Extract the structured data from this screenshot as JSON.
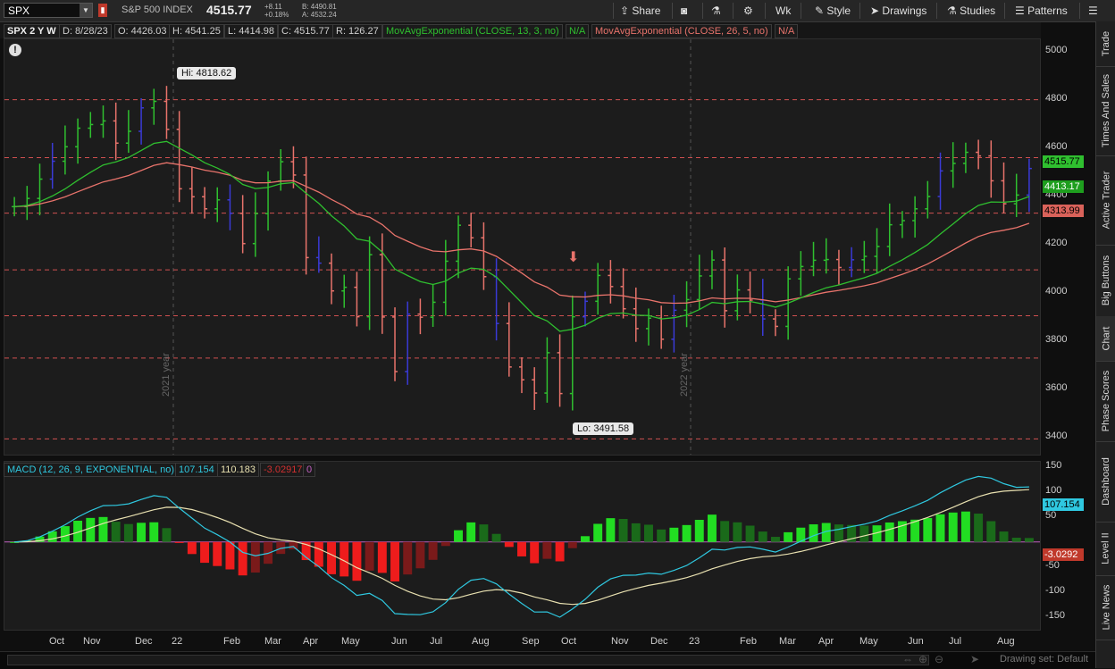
{
  "toolbar": {
    "symbol": "SPX",
    "index_name": "S&P 500 INDEX",
    "last": "4515.77",
    "change": "+8.11",
    "change_pct": "+0.18%",
    "bid": "B: 4490.81",
    "ask": "A: 4532.24",
    "share": "Share",
    "timeframe": "Wk",
    "style": "Style",
    "drawings": "Drawings",
    "studies": "Studies",
    "patterns": "Patterns"
  },
  "study_strip": {
    "aggregation": "SPX 2 Y W",
    "date": "D: 8/28/23",
    "open": "O: 4426.03",
    "high": "H: 4541.25",
    "low": "L: 4414.98",
    "close": "C: 4515.77",
    "range": "R: 126.27",
    "ema1": "MovAvgExponential (CLOSE, 13, 3, no)",
    "ema1_val": "N/A",
    "ema2": "MovAvgExponential (CLOSE, 26, 5, no)",
    "ema2_val": "N/A"
  },
  "macd_strip": {
    "name": "MACD (12, 26, 9, EXPONENTIAL, no)",
    "value": "107.154",
    "avg": "110.183",
    "diff": "-3.02917",
    "zero": "0"
  },
  "annotations": {
    "high_label": "Hi: 4818.62",
    "low_label": "Lo: 3491.58",
    "year_2021": "2021 year",
    "year_2022": "2022 year"
  },
  "price_axis": [
    "5000",
    "4800",
    "4600",
    "4400",
    "4200",
    "4000",
    "3800",
    "3600",
    "3400"
  ],
  "price_tags": {
    "last": "4515.77",
    "ema1": "4413.17",
    "ema2": "4313.99"
  },
  "macd_axis": [
    "150",
    "100",
    "50",
    "-50",
    "-100",
    "-150"
  ],
  "macd_tags": {
    "value": "107.154",
    "diff": "-3.0292"
  },
  "x_axis": [
    "Oct",
    "Nov",
    "Dec",
    "22",
    "Feb",
    "Mar",
    "Apr",
    "May",
    "Jun",
    "Jul",
    "Aug",
    "Sep",
    "Oct",
    "Nov",
    "Dec",
    "23",
    "Feb",
    "Mar",
    "Apr",
    "May",
    "Jun",
    "Jul",
    "Aug"
  ],
  "side_tabs": [
    "Trade",
    "Times And Sales",
    "Active Trader",
    "Big Buttons",
    "Chart",
    "Phase Scores",
    "Dashboard",
    "Level II",
    "Live News"
  ],
  "status": {
    "drawing_set": "Drawing set: Default"
  },
  "colors": {
    "up": "#2fbf2f",
    "down": "#e8736b",
    "neutral": "#3a3ad6",
    "ema_fast": "#2fbf2f",
    "ema_slow": "#e8736b",
    "macd_line": "#2fc8e0",
    "macd_avg": "#e8e0b0"
  },
  "chart_data": {
    "type": "candlestick",
    "symbol": "SPX",
    "period": "weekly",
    "ylim": [
      3330,
      5050
    ],
    "hlines": [
      4800,
      4560,
      4330,
      4095,
      3905,
      3730,
      3395
    ],
    "price_weekly_close": [
      4357,
      4391,
      4471,
      4545,
      4605,
      4682,
      4697,
      4712,
      4620,
      4669,
      4766,
      4793,
      4677,
      4431,
      4398,
      4348,
      4385,
      4329,
      4204,
      4328,
      4463,
      4543,
      4488,
      4146,
      4123,
      4008,
      4023,
      3901,
      4158,
      3900,
      3674,
      3912,
      3899,
      3961,
      4131,
      4280,
      4228,
      4067,
      3873,
      3693,
      3640,
      3585,
      3752,
      3583,
      3901,
      3965,
      4072,
      4026,
      3934,
      3852,
      3895,
      3808,
      3928,
      3972,
      4070,
      4136,
      3926,
      4012,
      3970,
      3892,
      3861,
      4058,
      4109,
      4135,
      4138,
      4105,
      4137,
      4151,
      4192,
      4282,
      4299,
      4348,
      4399,
      4505,
      4536,
      4582,
      4567,
      4464,
      4369,
      4405,
      4515
    ],
    "ema_fast_last": 4413.17,
    "ema_slow_last": 4313.99,
    "high": 4818.62,
    "low": 3491.58,
    "macd": {
      "ylim": [
        -175,
        160
      ],
      "value": 107.154,
      "avg": 110.183,
      "diff": -3.02917
    }
  }
}
